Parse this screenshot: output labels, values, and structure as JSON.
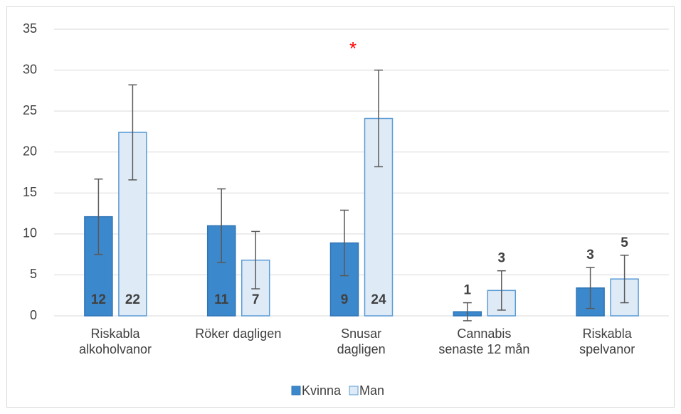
{
  "chart_data": {
    "type": "bar",
    "categories": [
      "Riskabla\nalkoholvanor",
      "Röker dagligen",
      "Snusar\ndagligen",
      "Cannabis\nsenaste 12 mån",
      "Riskabla\nspelvanor"
    ],
    "series": [
      {
        "name": "Kvinna",
        "color": "#3c88cc",
        "values": [
          12.1,
          11.0,
          8.9,
          0.5,
          3.4
        ],
        "errors": [
          4.6,
          4.5,
          4.0,
          1.1,
          2.5
        ],
        "value_labels": [
          "12",
          "11",
          "9",
          "1",
          "3"
        ]
      },
      {
        "name": "Man",
        "color": "#deebf7",
        "values": [
          22.4,
          6.8,
          24.1,
          3.1,
          4.5
        ],
        "errors": [
          5.8,
          3.5,
          5.9,
          2.4,
          2.9
        ],
        "value_labels": [
          "22",
          "7",
          "24",
          "3",
          "5"
        ]
      }
    ],
    "annotations": [
      {
        "text": "*",
        "category": 2,
        "color": "#ff0000"
      }
    ],
    "ylim": [
      0,
      35
    ],
    "yticks": [
      0,
      5,
      10,
      15,
      20,
      25,
      30,
      35
    ],
    "grid": true,
    "legend": "bottom"
  }
}
